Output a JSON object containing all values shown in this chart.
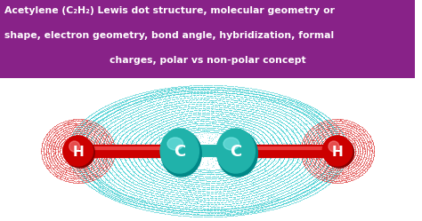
{
  "bg_color": "#ffffff",
  "title_bg_color": "#882288",
  "title_text_color": "#ffffff",
  "title_line1": "Acetylene (C₂H₂) Lewis dot structure, molecular geometry or",
  "title_line2": "shape, electron geometry, bond angle, hybridization, formal",
  "title_line3": "charges, polar vs non-polar concept",
  "title_fontsize": 7.8,
  "carbon_color": "#20B2AA",
  "carbon_dark": "#008888",
  "hydrogen_color": "#cc0000",
  "hydrogen_dark": "#880000",
  "bond_color": "#cc0000",
  "label_color": "#ffffff",
  "orbital_color": "#20C8CC",
  "red_orbital_color": "#dd3333"
}
